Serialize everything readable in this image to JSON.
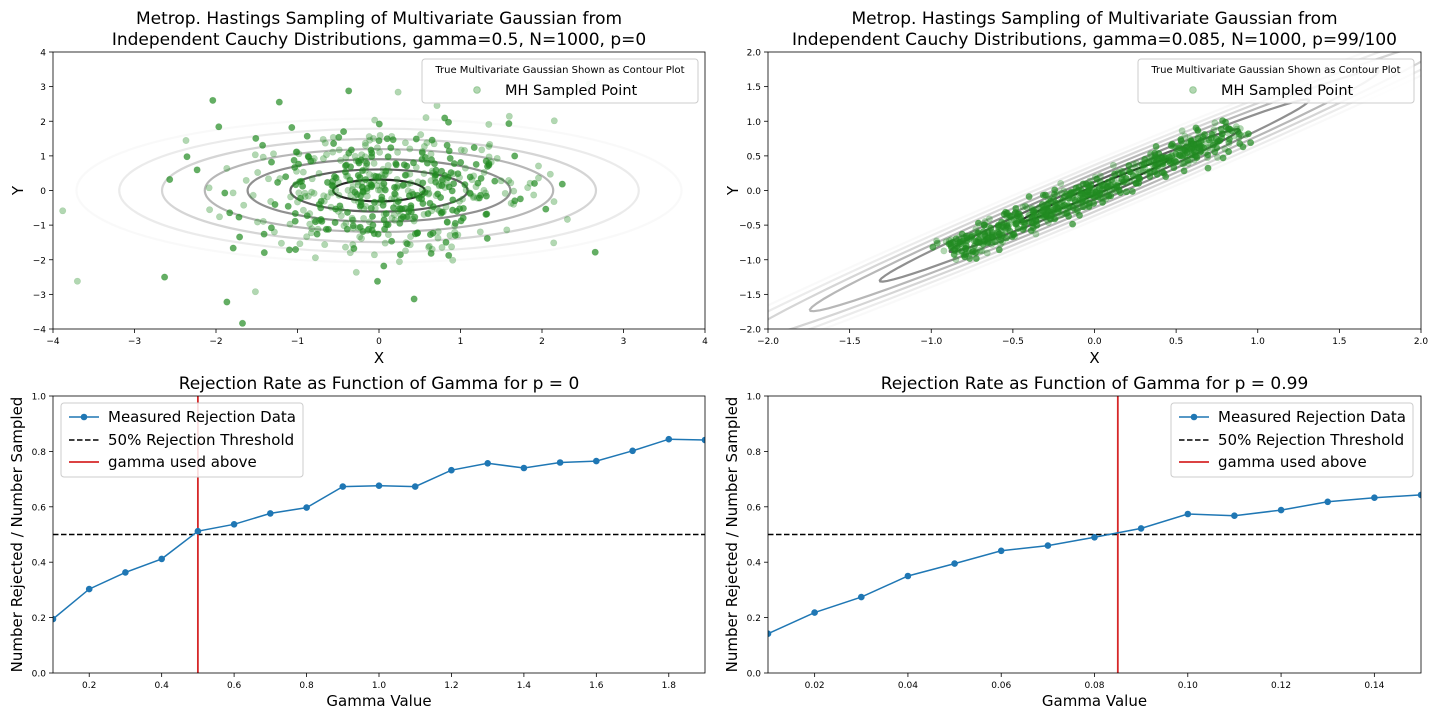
{
  "chart_data": [
    {
      "type": "scatter",
      "title_lines": [
        "Metrop. Hastings Sampling of Multivariate Gaussian from",
        "Independent Cauchy Distributions, gamma=0.5, N=1000, p=0"
      ],
      "xlabel": "X",
      "ylabel": "Y",
      "xlim": [
        -4,
        4
      ],
      "ylim": [
        -4,
        4
      ],
      "xticks": [
        -4,
        -3,
        -2,
        -1,
        0,
        1,
        2,
        3,
        4
      ],
      "yticks": [
        -4,
        -3,
        -2,
        -1,
        0,
        1,
        2,
        3,
        4
      ],
      "legend": {
        "title": "True Multivariate Gaussian Shown as Contour Plot",
        "placement": "top-right",
        "entries": [
          "MH Sampled Point"
        ]
      },
      "contour": {
        "correlation": 0,
        "sigma_x": 1,
        "sigma_y": 1,
        "levels": 7
      },
      "sample": {
        "count": 1000,
        "shown_points": 520,
        "spread": 0.9,
        "tail_scale": 0.3
      },
      "colors": {
        "points": "#228B22",
        "contour": "#222222"
      }
    },
    {
      "type": "scatter",
      "title_lines": [
        "Metrop. Hastings Sampling of Multivariate Gaussian from",
        "Independent Cauchy Distributions, gamma=0.085, N=1000, p=99/100"
      ],
      "xlabel": "X",
      "ylabel": "Y",
      "xlim": [
        -2,
        2
      ],
      "ylim": [
        -2,
        2
      ],
      "xticks": [
        -2.0,
        -1.5,
        -1.0,
        -0.5,
        0.0,
        0.5,
        1.0,
        1.5,
        2.0
      ],
      "xtick_labels": [
        "−2.0",
        "−1.5",
        "−1.0",
        "−0.5",
        "0.0",
        "0.5",
        "1.0",
        "1.5",
        "2.0"
      ],
      "yticks": [
        -2.0,
        -1.5,
        -1.0,
        -0.5,
        0.0,
        0.5,
        1.0,
        1.5,
        2.0
      ],
      "ytick_labels": [
        "−2.0",
        "−1.5",
        "−1.0",
        "−0.5",
        "0.0",
        "0.5",
        "1.0",
        "1.5",
        "2.0"
      ],
      "legend": {
        "title": "True Multivariate Gaussian Shown as Contour Plot",
        "placement": "top-right",
        "entries": [
          "MH Sampled Point"
        ]
      },
      "contour": {
        "correlation": 0.99,
        "sigma_x": 1,
        "sigma_y": 1,
        "levels": 7
      },
      "sample": {
        "count": 1000,
        "shown_points": 620,
        "along_range": [
          -0.9,
          0.9
        ],
        "across_spread": 0.08,
        "clusters": [
          [
            -0.68,
            -0.68
          ],
          [
            -0.3,
            -0.3
          ],
          [
            0.55,
            0.55
          ],
          [
            0.0,
            0.0
          ]
        ]
      },
      "colors": {
        "points": "#228B22",
        "contour": "#222222"
      }
    },
    {
      "type": "line",
      "title": "Rejection Rate as Function of Gamma for p = 0",
      "xlabel": "Gamma Value",
      "ylabel": "Number Rejected / Number Sampled",
      "xlim": [
        0.1,
        1.9
      ],
      "ylim": [
        0.0,
        1.0
      ],
      "xticks": [
        0.2,
        0.4,
        0.6,
        0.8,
        1.0,
        1.2,
        1.4,
        1.6,
        1.8
      ],
      "xtick_labels": [
        "0.2",
        "0.4",
        "0.6",
        "0.8",
        "1.0",
        "1.2",
        "1.4",
        "1.6",
        "1.8"
      ],
      "yticks": [
        0.0,
        0.2,
        0.4,
        0.6,
        0.8,
        1.0
      ],
      "ytick_labels": [
        "0.0",
        "0.2",
        "0.4",
        "0.6",
        "0.8",
        "1.0"
      ],
      "x": [
        0.1,
        0.2,
        0.3,
        0.4,
        0.5,
        0.6,
        0.7,
        0.8,
        0.9,
        1.0,
        1.1,
        1.2,
        1.3,
        1.4,
        1.5,
        1.6,
        1.7,
        1.8,
        1.9
      ],
      "y": [
        0.195,
        0.303,
        0.363,
        0.412,
        0.512,
        0.537,
        0.576,
        0.597,
        0.673,
        0.676,
        0.673,
        0.732,
        0.757,
        0.74,
        0.76,
        0.765,
        0.802,
        0.844,
        0.841
      ],
      "threshold": 0.5,
      "gamma_used": 0.5,
      "legend": {
        "placement": "top-left",
        "entries": [
          "Measured Rejection Data",
          "50% Rejection Threshold",
          "gamma used above"
        ]
      },
      "colors": {
        "line": "#1f77b4",
        "threshold": "#000000",
        "gamma": "#d62728"
      }
    },
    {
      "type": "line",
      "title": "Rejection Rate as Function of Gamma for p = 0.99",
      "xlabel": "Gamma Value",
      "ylabel": "Number Rejected / Number Sampled",
      "xlim": [
        0.01,
        0.15
      ],
      "ylim": [
        0.0,
        1.0
      ],
      "xticks": [
        0.02,
        0.04,
        0.06,
        0.08,
        0.1,
        0.12,
        0.14
      ],
      "xtick_labels": [
        "0.02",
        "0.04",
        "0.06",
        "0.08",
        "0.10",
        "0.12",
        "0.14"
      ],
      "yticks": [
        0.0,
        0.2,
        0.4,
        0.6,
        0.8,
        1.0
      ],
      "ytick_labels": [
        "0.0",
        "0.2",
        "0.4",
        "0.6",
        "0.8",
        "1.0"
      ],
      "x": [
        0.01,
        0.02,
        0.03,
        0.04,
        0.05,
        0.06,
        0.07,
        0.08,
        0.09,
        0.1,
        0.11,
        0.12,
        0.13,
        0.14,
        0.15
      ],
      "y": [
        0.142,
        0.218,
        0.274,
        0.35,
        0.395,
        0.441,
        0.46,
        0.49,
        0.522,
        0.574,
        0.568,
        0.588,
        0.618,
        0.633,
        0.643
      ],
      "threshold": 0.5,
      "gamma_used": 0.085,
      "legend": {
        "placement": "top-right",
        "entries": [
          "Measured Rejection Data",
          "50% Rejection Threshold",
          "gamma used above"
        ]
      },
      "colors": {
        "line": "#1f77b4",
        "threshold": "#000000",
        "gamma": "#d62728"
      }
    }
  ]
}
